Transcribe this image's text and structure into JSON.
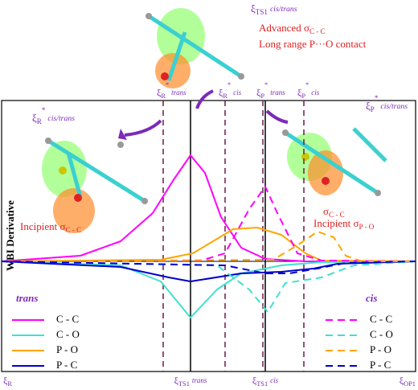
{
  "chart_data": {
    "type": "line",
    "ylabel": "WBI Derivative",
    "xlim": [
      2,
      517
    ],
    "ylim": [
      -1.37,
      2.0
    ],
    "zero_line": 0,
    "series": [
      {
        "name": "C - C",
        "group": "trans",
        "dash": false,
        "color": "#ff00ff",
        "x": [
          2,
          100,
          150,
          190,
          215,
          237,
          255,
          275,
          300,
          330,
          380,
          517
        ],
        "values": [
          0,
          0.07,
          0.25,
          0.6,
          1.0,
          1.32,
          1.1,
          0.55,
          0.17,
          0.03,
          0,
          0
        ]
      },
      {
        "name": "C - O",
        "group": "trans",
        "dash": false,
        "color": "#40e0d0",
        "x": [
          2,
          150,
          200,
          237,
          270,
          300,
          350,
          400,
          517
        ],
        "values": [
          0,
          -0.05,
          -0.25,
          -0.7,
          -0.35,
          -0.15,
          -0.05,
          -0.01,
          0
        ]
      },
      {
        "name": "P - O",
        "group": "trans",
        "dash": false,
        "color": "#ffa500",
        "x": [
          2,
          200,
          240,
          290,
          320,
          350,
          380,
          400,
          517
        ],
        "values": [
          0,
          0.02,
          0.1,
          0.4,
          0.42,
          0.33,
          0.1,
          0.01,
          0
        ]
      },
      {
        "name": "P - C",
        "group": "trans",
        "dash": false,
        "color": "#0000cd",
        "x": [
          2,
          150,
          210,
          237,
          300,
          350,
          390,
          420,
          517
        ],
        "values": [
          0,
          -0.07,
          -0.2,
          -0.25,
          -0.15,
          -0.13,
          -0.09,
          -0.03,
          0
        ]
      },
      {
        "name": "C - C",
        "group": "cis",
        "dash": true,
        "color": "#ff00ff",
        "x": [
          2,
          250,
          280,
          310,
          330,
          345,
          370,
          400,
          517
        ],
        "values": [
          0,
          0.01,
          0.1,
          0.65,
          0.93,
          0.6,
          0.1,
          0.01,
          0
        ]
      },
      {
        "name": "C - O",
        "group": "cis",
        "dash": true,
        "color": "#40e0d0",
        "x": [
          2,
          270,
          310,
          333,
          355,
          400,
          440,
          517
        ],
        "values": [
          0,
          -0.05,
          -0.35,
          -0.63,
          -0.27,
          -0.2,
          -0.05,
          0
        ]
      },
      {
        "name": "P - O",
        "group": "cis",
        "dash": true,
        "color": "#ffa500",
        "x": [
          2,
          340,
          370,
          395,
          415,
          430,
          450,
          517
        ],
        "values": [
          0,
          0.02,
          0.2,
          0.37,
          0.3,
          0.07,
          0,
          0
        ]
      },
      {
        "name": "P - C",
        "group": "cis",
        "dash": true,
        "color": "#0000cd",
        "x": [
          2,
          280,
          330,
          360,
          400,
          430,
          517
        ],
        "values": [
          0,
          -0.05,
          -0.15,
          -0.15,
          -0.08,
          -0.02,
          0
        ]
      }
    ],
    "legend_groups": [
      "trans",
      "cis"
    ],
    "vlines": [
      {
        "x": 203,
        "style": "dashed",
        "color": "#6b1a4a"
      },
      {
        "x": 237,
        "style": "solid",
        "color": "#000000"
      },
      {
        "x": 280,
        "style": "dashed",
        "color": "#6b1a4a"
      },
      {
        "x": 327,
        "style": "dashed",
        "color": "#6b1a4a"
      },
      {
        "x": 330,
        "style": "solid",
        "color": "#000000"
      },
      {
        "x": 378,
        "style": "dashed",
        "color": "#6b1a4a"
      }
    ],
    "top_labels": [
      {
        "x": 203,
        "sym": "ξ",
        "sub": "R",
        "sup": "*",
        "tag": "trans"
      },
      {
        "x": 280,
        "sym": "ξ",
        "sub": "R",
        "sup": "*",
        "tag": "cis"
      },
      {
        "x": 327,
        "sym": "ξ",
        "sub": "P",
        "sup": "*",
        "tag": "trans"
      },
      {
        "x": 378,
        "sym": "ξ",
        "sub": "P",
        "sup": "*",
        "tag": "cis"
      }
    ],
    "bottom_labels": [
      {
        "x": 2,
        "sym": "ξ",
        "sub": "R"
      },
      {
        "x": 237,
        "sym": "ξ",
        "sub": "TS1",
        "tag": "trans"
      },
      {
        "x": 330,
        "sym": "ξ",
        "sub": "TS1",
        "tag": "cis"
      },
      {
        "x": 517,
        "sym": "ξ",
        "sub": "OP1"
      }
    ],
    "annotations": {
      "ts1": {
        "sym": "ξ",
        "sub": "TS1",
        "tag": "cis/trans"
      },
      "advanced": {
        "text": "Advanced σ",
        "sub": "C - C"
      },
      "long_range": "Long range P···O contact",
      "r_star": {
        "sym": "ξ",
        "sub": "R",
        "sup": "*",
        "tag": "cis/trans"
      },
      "p_star": {
        "sym": "ξ",
        "sub": "P",
        "sup": "*",
        "tag": "cis/trans"
      },
      "incipient_cc": {
        "text": "Incipient σ",
        "sub": "C - C"
      },
      "sigma_cc": {
        "text": "σ",
        "sub": "C - C"
      },
      "incipient_po": {
        "text": "Incipient σ",
        "sub": "P - O"
      }
    }
  }
}
